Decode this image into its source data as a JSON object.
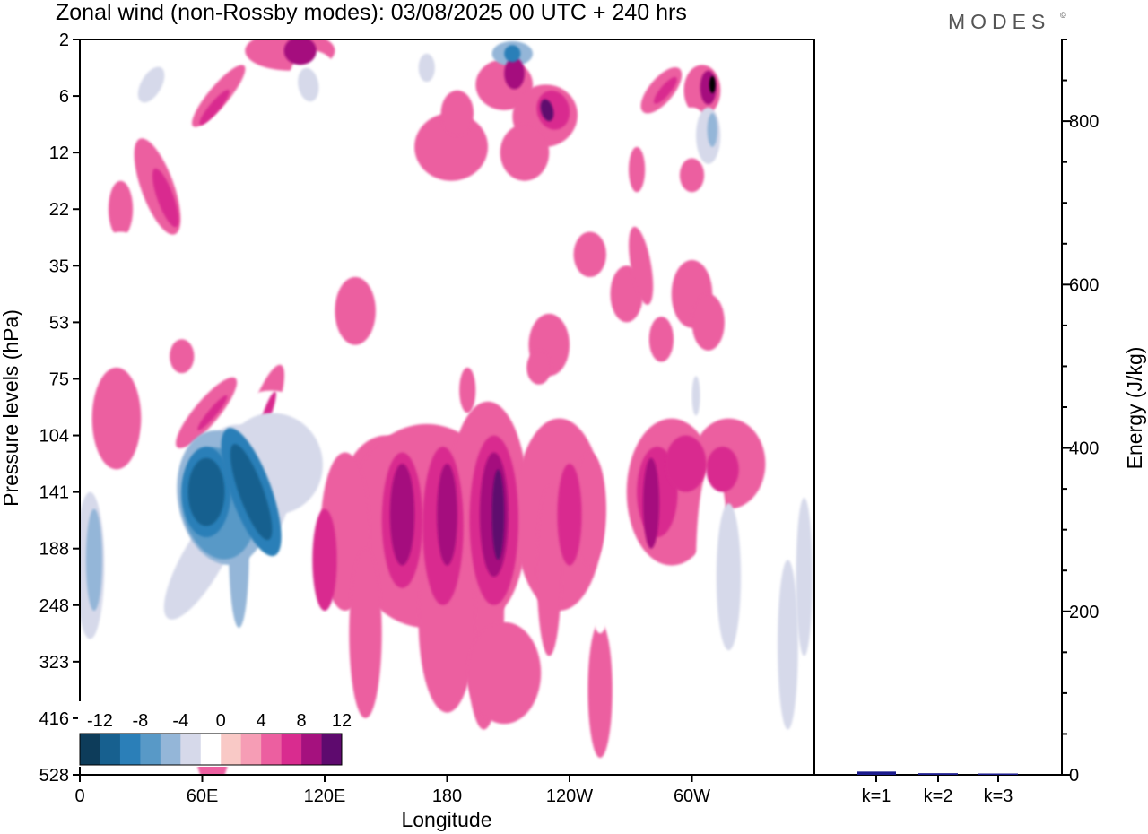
{
  "title": "Zonal wind (non-Rossby modes):  03/08/2025  00 UTC  + 240 hrs",
  "logo": {
    "text": "MODES",
    "mark": "©"
  },
  "chart_data": [
    {
      "type": "heatmap",
      "title": "Zonal wind (non-Rossby modes):  03/08/2025  00 UTC  + 240 hrs",
      "xlabel": "Longitude",
      "ylabel": "Pressure levels (hPa)",
      "x_ticks": [
        "0",
        "60E",
        "120E",
        "180",
        "120W",
        "60W"
      ],
      "x_tick_degrees": [
        0,
        60,
        120,
        180,
        240,
        300
      ],
      "xlim": [
        0,
        360
      ],
      "y_ticks": [
        "2",
        "6",
        "12",
        "22",
        "35",
        "53",
        "75",
        "104",
        "141",
        "188",
        "248",
        "323",
        "416",
        "528"
      ],
      "colorbar": {
        "labels": [
          "-12",
          "-8",
          "-4",
          "0",
          "4",
          "8",
          "12"
        ],
        "levels": [
          -14,
          -12,
          -10,
          -8,
          -6,
          -4,
          -2,
          2,
          4,
          6,
          8,
          10,
          12,
          14
        ],
        "colors": [
          "#0d3c5a",
          "#17608f",
          "#2b7fb8",
          "#5899c7",
          "#94b6d8",
          "#d6d9ea",
          "#ffffff",
          "#f9c9c6",
          "#f69db5",
          "#ec5fa0",
          "#d92c8f",
          "#a5117e",
          "#5e0a6e"
        ]
      },
      "features": [
        {
          "name": "upper-blue-2hPa-near-130W",
          "lon": 210,
          "level_index": 0.3,
          "value": -10
        },
        {
          "name": "upper-pink-6hPa-near-45E",
          "lon": 45,
          "level_index": 0.5,
          "value": 8
        },
        {
          "name": "upper-pink-6hPa-near-60W",
          "lon": 298,
          "level_index": 1.0,
          "value": 10
        },
        {
          "name": "upper-blue-12hPa-near-60W",
          "lon": 300,
          "level_index": 1.6,
          "value": -8
        },
        {
          "name": "jet-core-blue-141hPa-near-60E",
          "lon": 62,
          "level_index": 8.0,
          "value": -14
        },
        {
          "name": "jet-core-blue-141hPa-near-80E",
          "lon": 84,
          "level_index": 8.0,
          "value": -14
        },
        {
          "name": "pink-core-160hPa-near-150E",
          "lon": 158,
          "level_index": 8.4,
          "value": 8
        },
        {
          "name": "pink-core-160hPa-near-180",
          "lon": 180,
          "level_index": 8.4,
          "value": 8
        },
        {
          "name": "pink-core-160hPa-near-160W",
          "lon": 203,
          "level_index": 8.4,
          "value": 10
        },
        {
          "name": "blue-188hPa-near-0",
          "lon": 5,
          "level_index": 9.2,
          "value": -6
        },
        {
          "name": "blue-248hPa-near-40W",
          "lon": 325,
          "level_index": 10.3,
          "value": -6
        }
      ]
    },
    {
      "type": "bar",
      "categories": [
        "k=1",
        "k=2",
        "k=3"
      ],
      "values": [
        4,
        2,
        1
      ],
      "ylabel": "Energy (J/kg)",
      "ylim": [
        0,
        900
      ],
      "y_ticks": [
        "0",
        "200",
        "400",
        "600",
        "800"
      ],
      "y_tick_values": [
        0,
        200,
        400,
        600,
        800
      ],
      "bar_color": "#1a1a8c"
    }
  ]
}
